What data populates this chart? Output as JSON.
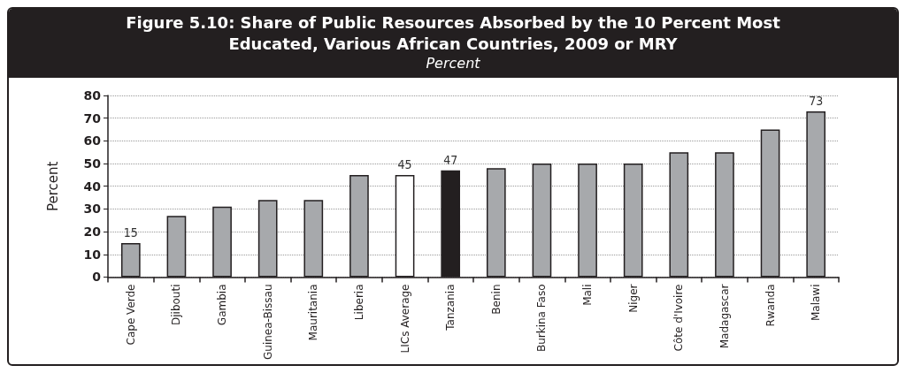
{
  "chart_data": {
    "type": "bar",
    "title": "Figure 5.10: Share of Public Resources Absorbed by the 10 Percent Most Educated, Various African Countries, 2009 or MRY",
    "subtitle": "Percent",
    "ylabel": "Percent",
    "categories": [
      "Cape Verde",
      "Djibouti",
      "Gambia",
      "Guinea-Bissau",
      "Mauritania",
      "Liberia",
      "LICs Average",
      "Tanzania",
      "Benin",
      "Burkina Faso",
      "Mali",
      "Niger",
      "Côte d'Ivoire",
      "Madagascar",
      "Rwanda",
      "Malawi"
    ],
    "values": [
      15,
      27,
      31,
      34,
      34,
      45,
      45,
      47,
      48,
      50,
      50,
      50,
      55,
      55,
      65,
      73
    ],
    "colors": [
      "#a7a9ac",
      "#a7a9ac",
      "#a7a9ac",
      "#a7a9ac",
      "#a7a9ac",
      "#a7a9ac",
      "#ffffff",
      "#231f20",
      "#a7a9ac",
      "#a7a9ac",
      "#a7a9ac",
      "#a7a9ac",
      "#a7a9ac",
      "#a7a9ac",
      "#a7a9ac",
      "#a7a9ac"
    ],
    "value_labels": [
      "15",
      null,
      null,
      null,
      null,
      null,
      "45",
      "47",
      null,
      null,
      null,
      null,
      null,
      null,
      null,
      "73"
    ],
    "ylim": [
      0,
      80
    ],
    "yticks": [
      0,
      10,
      20,
      30,
      40,
      50,
      60,
      70,
      80
    ],
    "grid": "y"
  }
}
